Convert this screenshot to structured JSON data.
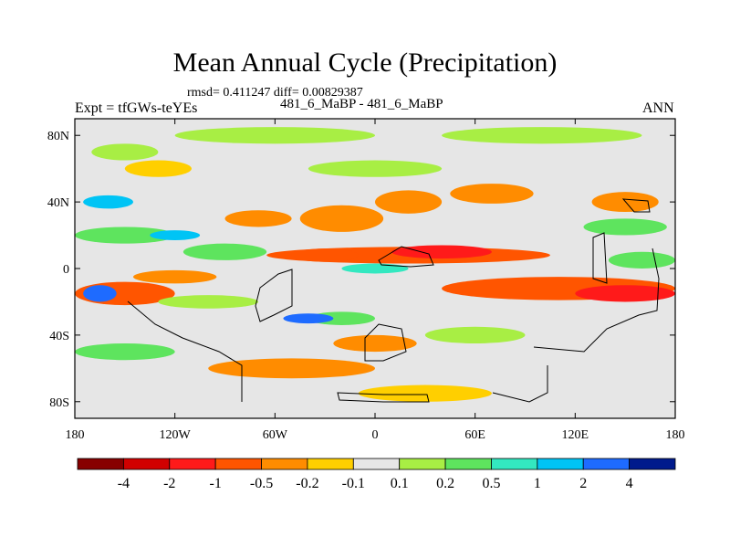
{
  "chart_data": {
    "type": "heatmap",
    "title": "Mean Annual Cycle (Precipitation)",
    "stats": "rmsd= 0.411247 diff= 0.00829387",
    "left_label": "Expt = tfGWs-teYEs",
    "center_label": "481_6_MaBP - 481_6_MaBP",
    "right_label": "ANN",
    "x_axis": {
      "range": [
        -180,
        180
      ],
      "ticks": [
        -180,
        -120,
        -60,
        0,
        60,
        120,
        180
      ],
      "tick_labels": [
        "180",
        "120W",
        "60W",
        "0",
        "60E",
        "120E",
        "180"
      ]
    },
    "y_axis": {
      "range": [
        -90,
        90
      ],
      "ticks": [
        80,
        40,
        0,
        -40,
        -80
      ],
      "tick_labels": [
        "80N",
        "40N",
        "0",
        "40S",
        "80S"
      ]
    },
    "colorbar": {
      "levels": [
        -4,
        -2,
        -1,
        -0.5,
        -0.2,
        -0.1,
        0.1,
        0.2,
        0.5,
        1,
        2,
        4
      ],
      "labels": [
        "-4",
        "-2",
        "-1",
        "-0.5",
        "-0.2",
        "-0.1",
        "0.1",
        "0.2",
        "0.5",
        "1",
        "2",
        "4"
      ],
      "colors": [
        "#870000",
        "#d10000",
        "#ff1a1a",
        "#ff5500",
        "#ff8c00",
        "#ffcf00",
        "#e6e6e6",
        "#a8ee44",
        "#5ee45e",
        "#33e8c0",
        "#00c4f5",
        "#1e6bff",
        "#001a8c"
      ]
    },
    "regions": [
      {
        "lon": 20,
        "lat": 8,
        "rx": 85,
        "ry": 5,
        "level": 3
      },
      {
        "lon": 40,
        "lat": 10,
        "rx": 30,
        "ry": 4,
        "level": 2
      },
      {
        "lon": -30,
        "lat": 8,
        "rx": 20,
        "ry": 4,
        "level": 3
      },
      {
        "lon": 110,
        "lat": -12,
        "rx": 70,
        "ry": 7,
        "level": 3
      },
      {
        "lon": 150,
        "lat": -15,
        "rx": 30,
        "ry": 5,
        "level": 2
      },
      {
        "lon": -150,
        "lat": -15,
        "rx": 30,
        "ry": 7,
        "level": 3
      },
      {
        "lon": -120,
        "lat": -5,
        "rx": 25,
        "ry": 4,
        "level": 4
      },
      {
        "lon": -50,
        "lat": -60,
        "rx": 50,
        "ry": 6,
        "level": 4
      },
      {
        "lon": 0,
        "lat": -45,
        "rx": 25,
        "ry": 5,
        "level": 4
      },
      {
        "lon": -20,
        "lat": 30,
        "rx": 25,
        "ry": 8,
        "level": 4
      },
      {
        "lon": 20,
        "lat": 40,
        "rx": 20,
        "ry": 7,
        "level": 4
      },
      {
        "lon": 70,
        "lat": 45,
        "rx": 25,
        "ry": 6,
        "level": 4
      },
      {
        "lon": -70,
        "lat": 30,
        "rx": 20,
        "ry": 5,
        "level": 4
      },
      {
        "lon": 150,
        "lat": 40,
        "rx": 20,
        "ry": 6,
        "level": 4
      },
      {
        "lon": -130,
        "lat": 60,
        "rx": 20,
        "ry": 5,
        "level": 5
      },
      {
        "lon": 30,
        "lat": -75,
        "rx": 40,
        "ry": 5,
        "level": 5
      },
      {
        "lon": -20,
        "lat": -30,
        "rx": 20,
        "ry": 4,
        "level": 8
      },
      {
        "lon": -90,
        "lat": 10,
        "rx": 25,
        "ry": 5,
        "level": 8
      },
      {
        "lon": -150,
        "lat": 20,
        "rx": 30,
        "ry": 5,
        "level": 8
      },
      {
        "lon": 160,
        "lat": 5,
        "rx": 20,
        "ry": 5,
        "level": 8
      },
      {
        "lon": 150,
        "lat": 25,
        "rx": 25,
        "ry": 5,
        "level": 8
      },
      {
        "lon": -150,
        "lat": -50,
        "rx": 30,
        "ry": 5,
        "level": 8
      },
      {
        "lon": 0,
        "lat": 0,
        "rx": 20,
        "ry": 3,
        "level": 9
      },
      {
        "lon": -160,
        "lat": 40,
        "rx": 15,
        "ry": 4,
        "level": 10
      },
      {
        "lon": -165,
        "lat": -15,
        "rx": 10,
        "ry": 5,
        "level": 11
      },
      {
        "lon": -40,
        "lat": -30,
        "rx": 15,
        "ry": 3,
        "level": 11
      },
      {
        "lon": -120,
        "lat": 20,
        "rx": 15,
        "ry": 3,
        "level": 10
      },
      {
        "lon": -60,
        "lat": 80,
        "rx": 60,
        "ry": 5,
        "level": 7
      },
      {
        "lon": 100,
        "lat": 80,
        "rx": 60,
        "ry": 5,
        "level": 7
      },
      {
        "lon": -100,
        "lat": -20,
        "rx": 30,
        "ry": 4,
        "level": 7
      },
      {
        "lon": -150,
        "lat": 70,
        "rx": 20,
        "ry": 5,
        "level": 7
      },
      {
        "lon": 60,
        "lat": -40,
        "rx": 30,
        "ry": 5,
        "level": 7
      },
      {
        "lon": 0,
        "lat": 60,
        "rx": 40,
        "ry": 5,
        "level": 7
      }
    ]
  }
}
